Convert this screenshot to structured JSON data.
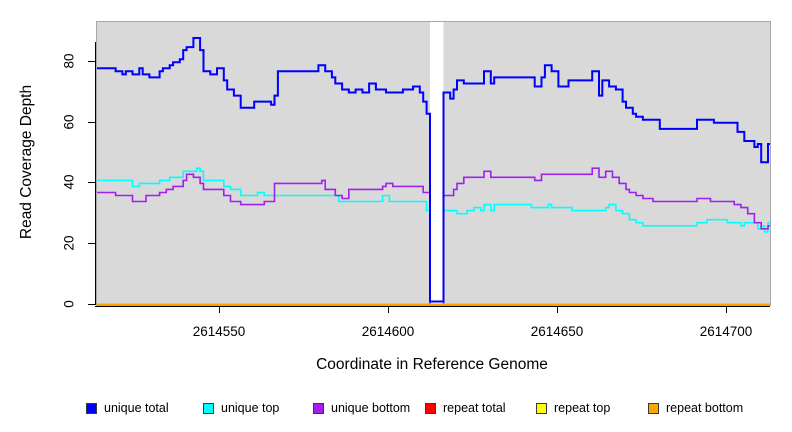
{
  "figure": {
    "y_axis_label": "Read Coverage Depth",
    "x_axis_label": "Coordinate in Reference Genome"
  },
  "legend": {
    "items": [
      {
        "label": "unique total",
        "color": "#0000ff"
      },
      {
        "label": "unique top",
        "color": "#00ffff"
      },
      {
        "label": "unique bottom",
        "color": "#a020f0"
      },
      {
        "label": "repeat total",
        "color": "#ff0000"
      },
      {
        "label": "repeat top",
        "color": "#ffff00"
      },
      {
        "label": "repeat bottom",
        "color": "#ffa500"
      }
    ]
  },
  "chart_data": {
    "type": "line",
    "subtype": "step-coverage-plot",
    "title": "",
    "xlabel": "Coordinate in Reference Genome",
    "ylabel": "Read Coverage Depth",
    "x_ticks": [
      2614550,
      2614600,
      2614650,
      2614700
    ],
    "y_ticks": [
      0,
      20,
      40,
      60,
      80
    ],
    "xlim": [
      2614513,
      2614713
    ],
    "ylim": [
      0,
      93
    ],
    "panel_background": "#d9d9d9",
    "gap_region": {
      "start": 2614612,
      "end": 2614616,
      "fill": "#ffffff"
    },
    "grid": false,
    "legend_position": "bottom",
    "series": [
      {
        "name": "unique total",
        "color": "#0000ff",
        "step_points": [
          [
            2614514,
            78
          ],
          [
            2614519,
            77
          ],
          [
            2614521,
            76
          ],
          [
            2614522,
            77
          ],
          [
            2614524,
            76
          ],
          [
            2614526,
            78
          ],
          [
            2614527,
            76
          ],
          [
            2614529,
            75
          ],
          [
            2614532,
            77
          ],
          [
            2614533,
            78
          ],
          [
            2614535,
            79
          ],
          [
            2614536,
            80
          ],
          [
            2614538,
            81
          ],
          [
            2614539,
            84
          ],
          [
            2614540,
            85
          ],
          [
            2614542,
            88
          ],
          [
            2614544,
            84
          ],
          [
            2614545,
            77
          ],
          [
            2614547,
            76
          ],
          [
            2614549,
            78
          ],
          [
            2614551,
            74
          ],
          [
            2614552,
            71
          ],
          [
            2614554,
            69
          ],
          [
            2614556,
            65
          ],
          [
            2614560,
            67
          ],
          [
            2614565,
            66
          ],
          [
            2614566,
            69
          ],
          [
            2614567,
            77
          ],
          [
            2614579,
            79
          ],
          [
            2614581,
            77
          ],
          [
            2614583,
            75
          ],
          [
            2614584,
            73
          ],
          [
            2614586,
            71
          ],
          [
            2614588,
            70
          ],
          [
            2614590,
            71
          ],
          [
            2614592,
            70
          ],
          [
            2614594,
            73
          ],
          [
            2614596,
            71
          ],
          [
            2614599,
            70
          ],
          [
            2614604,
            71
          ],
          [
            2614607,
            72
          ],
          [
            2614609,
            70
          ],
          [
            2614610,
            67
          ],
          [
            2614611,
            63
          ],
          [
            2614612,
            1
          ],
          [
            2614616,
            70
          ],
          [
            2614618,
            68
          ],
          [
            2614619,
            71
          ],
          [
            2614620,
            74
          ],
          [
            2614622,
            73
          ],
          [
            2614628,
            77
          ],
          [
            2614630,
            73
          ],
          [
            2614631,
            75
          ],
          [
            2614643,
            72
          ],
          [
            2614645,
            75
          ],
          [
            2614646,
            79
          ],
          [
            2614648,
            77
          ],
          [
            2614650,
            72
          ],
          [
            2614653,
            74
          ],
          [
            2614660,
            77
          ],
          [
            2614662,
            69
          ],
          [
            2614663,
            74
          ],
          [
            2614665,
            72
          ],
          [
            2614667,
            71
          ],
          [
            2614669,
            67
          ],
          [
            2614670,
            65
          ],
          [
            2614672,
            63
          ],
          [
            2614673,
            62
          ],
          [
            2614675,
            61
          ],
          [
            2614680,
            58
          ],
          [
            2614691,
            61
          ],
          [
            2614696,
            60
          ],
          [
            2614703,
            57
          ],
          [
            2614705,
            54
          ],
          [
            2614708,
            52
          ],
          [
            2614709,
            53
          ],
          [
            2614710,
            47
          ],
          [
            2614712,
            53
          ]
        ]
      },
      {
        "name": "unique top",
        "color": "#00ffff",
        "step_points": [
          [
            2614514,
            41
          ],
          [
            2614524,
            39
          ],
          [
            2614526,
            40
          ],
          [
            2614532,
            41
          ],
          [
            2614535,
            42
          ],
          [
            2614539,
            44
          ],
          [
            2614543,
            45
          ],
          [
            2614544,
            44
          ],
          [
            2614545,
            41
          ],
          [
            2614551,
            39
          ],
          [
            2614553,
            38
          ],
          [
            2614556,
            36
          ],
          [
            2614561,
            37
          ],
          [
            2614563,
            36
          ],
          [
            2614585,
            34
          ],
          [
            2614598,
            36
          ],
          [
            2614600,
            34
          ],
          [
            2614611,
            31
          ],
          [
            2614612,
            0
          ],
          [
            2614616,
            31
          ],
          [
            2614620,
            30
          ],
          [
            2614623,
            31
          ],
          [
            2614625,
            32
          ],
          [
            2614627,
            31
          ],
          [
            2614628,
            33
          ],
          [
            2614630,
            31
          ],
          [
            2614631,
            33
          ],
          [
            2614642,
            32
          ],
          [
            2614647,
            33
          ],
          [
            2614648,
            32
          ],
          [
            2614654,
            31
          ],
          [
            2614664,
            32
          ],
          [
            2614665,
            33
          ],
          [
            2614667,
            31
          ],
          [
            2614669,
            30
          ],
          [
            2614671,
            28
          ],
          [
            2614673,
            27
          ],
          [
            2614675,
            26
          ],
          [
            2614691,
            27
          ],
          [
            2614694,
            28
          ],
          [
            2614700,
            27
          ],
          [
            2614704,
            26
          ],
          [
            2614705,
            27
          ],
          [
            2614709,
            25
          ],
          [
            2614710,
            26
          ],
          [
            2614711,
            24
          ],
          [
            2614712,
            27
          ]
        ]
      },
      {
        "name": "unique bottom",
        "color": "#a020f0",
        "step_points": [
          [
            2614514,
            37
          ],
          [
            2614519,
            36
          ],
          [
            2614524,
            34
          ],
          [
            2614528,
            36
          ],
          [
            2614532,
            37
          ],
          [
            2614534,
            38
          ],
          [
            2614536,
            39
          ],
          [
            2614539,
            41
          ],
          [
            2614540,
            43
          ],
          [
            2614542,
            42
          ],
          [
            2614544,
            40
          ],
          [
            2614545,
            38
          ],
          [
            2614551,
            36
          ],
          [
            2614553,
            34
          ],
          [
            2614556,
            33
          ],
          [
            2614563,
            34
          ],
          [
            2614566,
            40
          ],
          [
            2614580,
            41
          ],
          [
            2614581,
            38
          ],
          [
            2614584,
            36
          ],
          [
            2614586,
            35
          ],
          [
            2614588,
            38
          ],
          [
            2614598,
            39
          ],
          [
            2614599,
            40
          ],
          [
            2614601,
            39
          ],
          [
            2614610,
            37
          ],
          [
            2614612,
            0
          ],
          [
            2614616,
            36
          ],
          [
            2614619,
            38
          ],
          [
            2614620,
            40
          ],
          [
            2614622,
            42
          ],
          [
            2614628,
            44
          ],
          [
            2614630,
            42
          ],
          [
            2614643,
            41
          ],
          [
            2614645,
            43
          ],
          [
            2614660,
            45
          ],
          [
            2614662,
            42
          ],
          [
            2614664,
            44
          ],
          [
            2614666,
            42
          ],
          [
            2614668,
            40
          ],
          [
            2614670,
            38
          ],
          [
            2614671,
            37
          ],
          [
            2614673,
            36
          ],
          [
            2614675,
            35
          ],
          [
            2614678,
            34
          ],
          [
            2614691,
            35
          ],
          [
            2614695,
            34
          ],
          [
            2614702,
            33
          ],
          [
            2614704,
            32
          ],
          [
            2614706,
            30
          ],
          [
            2614708,
            27
          ],
          [
            2614710,
            25
          ],
          [
            2614712,
            26
          ]
        ]
      },
      {
        "name": "repeat total",
        "color": "#ff0000",
        "step_points": [
          [
            2614514,
            0
          ]
        ]
      },
      {
        "name": "repeat top",
        "color": "#ffff00",
        "step_points": [
          [
            2614514,
            0
          ]
        ]
      },
      {
        "name": "repeat bottom",
        "color": "#ffa500",
        "step_points": [
          [
            2614514,
            0
          ]
        ]
      }
    ]
  }
}
